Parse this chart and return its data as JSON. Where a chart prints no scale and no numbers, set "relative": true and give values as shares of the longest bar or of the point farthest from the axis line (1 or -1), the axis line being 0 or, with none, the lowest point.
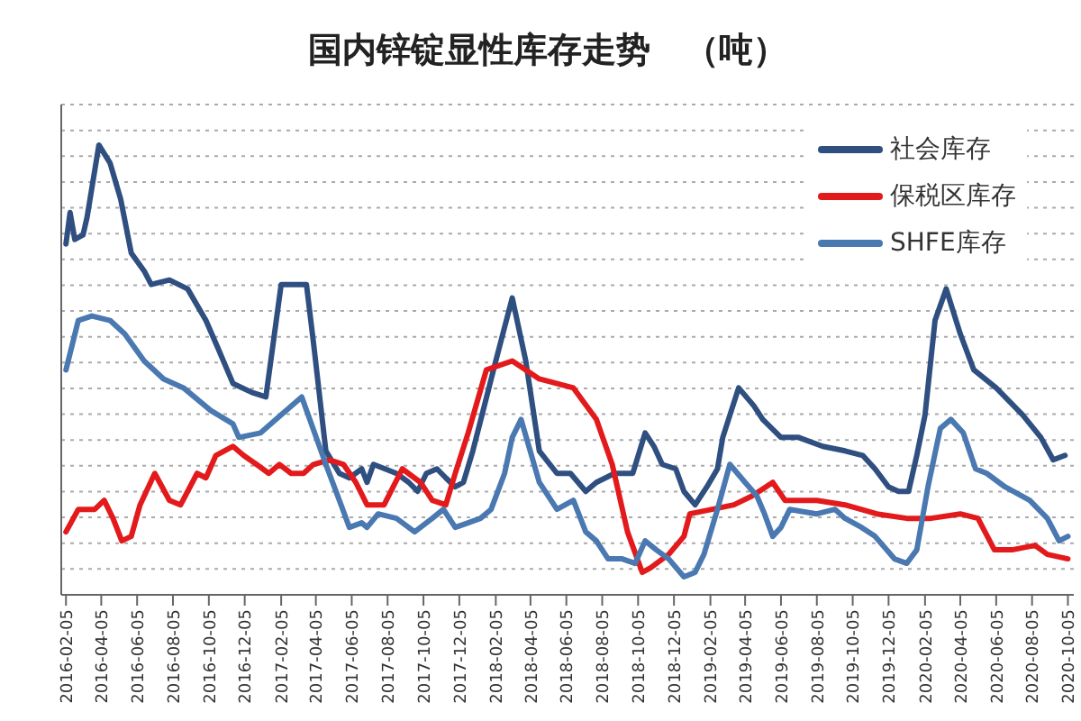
{
  "chart_data": {
    "type": "line",
    "title": "国内锌锭显性库存走势　（吨）",
    "relative": true,
    "grid": "y",
    "legend": "top right",
    "marker": "none",
    "line_style": "solid",
    "xlim": [
      "2016-01-28",
      "2020-10-15"
    ],
    "xticks": [
      "2016-02-05",
      "2016-04-05",
      "2016-06-05",
      "2016-08-05",
      "2016-10-05",
      "2016-12-05",
      "2017-02-05",
      "2017-04-05",
      "2017-06-05",
      "2017-08-05",
      "2017-10-05",
      "2017-12-05",
      "2018-02-05",
      "2018-04-05",
      "2018-06-05",
      "2018-08-05",
      "2018-10-05",
      "2018-12-05",
      "2019-02-05",
      "2019-04-05",
      "2019-06-05",
      "2019-08-05",
      "2019-10-05",
      "2019-12-05",
      "2020-02-05",
      "2020-04-05",
      "2020-06-05",
      "2020-08-05",
      "2020-10-05"
    ],
    "series": [
      {
        "name": "社会库存",
        "color": "#2f4f80",
        "x": [
          "2016-02-05",
          "2016-02-12",
          "2016-02-20",
          "2016-03-05",
          "2016-03-12",
          "2016-04-01",
          "2016-04-20",
          "2016-05-08",
          "2016-05-26",
          "2016-06-17",
          "2016-06-29",
          "2016-07-30",
          "2016-08-30",
          "2016-09-30",
          "2016-10-20",
          "2016-11-15",
          "2016-12-17",
          "2017-01-10",
          "2017-02-05",
          "2017-03-20",
          "2017-04-01",
          "2017-04-22",
          "2017-05-15",
          "2017-06-01",
          "2017-06-22",
          "2017-07-01",
          "2017-07-12",
          "2017-08-20",
          "2017-09-10",
          "2017-09-25",
          "2017-10-10",
          "2017-10-28",
          "2017-11-12",
          "2017-11-28",
          "2017-12-12",
          "2017-12-28",
          "2018-02-05",
          "2018-03-05",
          "2018-03-28",
          "2018-04-20",
          "2018-05-20",
          "2018-06-12",
          "2018-07-08",
          "2018-07-26",
          "2018-08-26",
          "2018-09-26",
          "2018-10-17",
          "2018-11-01",
          "2018-11-15",
          "2018-12-08",
          "2018-12-22",
          "2019-01-10",
          "2019-01-30",
          "2019-02-17",
          "2019-02-26",
          "2019-03-25",
          "2019-04-20",
          "2019-05-05",
          "2019-06-05",
          "2019-07-05",
          "2019-08-15",
          "2019-09-22",
          "2019-10-22",
          "2019-11-12",
          "2019-12-05",
          "2019-12-22",
          "2020-01-08",
          "2020-01-22",
          "2020-02-05",
          "2020-02-22",
          "2020-03-12",
          "2020-04-05",
          "2020-04-28",
          "2020-06-05",
          "2020-07-20",
          "2020-08-20",
          "2020-09-10",
          "2020-09-30"
        ],
        "values": [
          0.78,
          0.85,
          0.79,
          0.8,
          0.84,
          1,
          0.96,
          0.88,
          0.76,
          0.72,
          0.69,
          0.7,
          0.68,
          0.61,
          0.55,
          0.47,
          0.45,
          0.44,
          0.69,
          0.69,
          0.56,
          0.32,
          0.27,
          0.26,
          0.28,
          0.25,
          0.29,
          0.27,
          0.25,
          0.23,
          0.27,
          0.28,
          0.26,
          0.24,
          0.25,
          0.32,
          0.52,
          0.66,
          0.52,
          0.32,
          0.27,
          0.27,
          0.23,
          0.25,
          0.27,
          0.27,
          0.36,
          0.33,
          0.29,
          0.28,
          0.23,
          0.2,
          0.24,
          0.28,
          0.35,
          0.46,
          0.42,
          0.39,
          0.35,
          0.35,
          0.33,
          0.32,
          0.31,
          0.28,
          0.24,
          0.23,
          0.23,
          0.31,
          0.4,
          0.61,
          0.68,
          0.58,
          0.5,
          0.46,
          0.4,
          0.35,
          0.3,
          0.31
        ]
      },
      {
        "name": "保税区库存",
        "color": "#e31a1c",
        "x": [
          "2016-02-05",
          "2016-02-26",
          "2016-03-15",
          "2016-03-25",
          "2016-04-10",
          "2016-04-25",
          "2016-05-10",
          "2016-05-26",
          "2016-06-10",
          "2016-07-05",
          "2016-07-30",
          "2016-08-18",
          "2016-09-15",
          "2016-09-30",
          "2016-10-17",
          "2016-11-15",
          "2016-12-03",
          "2016-12-25",
          "2017-01-15",
          "2017-02-02",
          "2017-02-22",
          "2017-03-15",
          "2017-04-01",
          "2017-04-28",
          "2017-05-22",
          "2017-06-12",
          "2017-07-01",
          "2017-07-30",
          "2017-08-30",
          "2017-09-30",
          "2017-10-20",
          "2017-11-12",
          "2017-11-28",
          "2017-12-20",
          "2018-01-20",
          "2018-03-05",
          "2018-04-20",
          "2018-06-17",
          "2018-07-26",
          "2018-08-22",
          "2018-09-17",
          "2018-10-12",
          "2018-10-26",
          "2018-11-26",
          "2018-12-22",
          "2019-01-01",
          "2019-02-08",
          "2019-03-17",
          "2019-04-17",
          "2019-05-22",
          "2019-06-12",
          "2019-08-05",
          "2019-09-22",
          "2019-11-15",
          "2020-01-05",
          "2020-02-15",
          "2020-04-05",
          "2020-05-05",
          "2020-06-02",
          "2020-07-02",
          "2020-08-10",
          "2020-08-31",
          "2020-10-05"
        ],
        "values": [
          0.14,
          0.19,
          0.19,
          0.19,
          0.21,
          0.17,
          0.12,
          0.13,
          0.2,
          0.27,
          0.21,
          0.2,
          0.27,
          0.26,
          0.31,
          0.33,
          0.31,
          0.29,
          0.27,
          0.29,
          0.27,
          0.27,
          0.29,
          0.3,
          0.29,
          0.25,
          0.2,
          0.2,
          0.28,
          0.25,
          0.21,
          0.2,
          0.27,
          0.36,
          0.5,
          0.52,
          0.48,
          0.46,
          0.39,
          0.29,
          0.14,
          0.05,
          0.06,
          0.09,
          0.13,
          0.18,
          0.19,
          0.2,
          0.22,
          0.25,
          0.21,
          0.21,
          0.2,
          0.18,
          0.17,
          0.17,
          0.18,
          0.17,
          0.1,
          0.1,
          0.11,
          0.09,
          0.08
        ]
      },
      {
        "name": "SHFE库存",
        "color": "#4a78b0",
        "x": [
          "2016-02-05",
          "2016-02-26",
          "2016-03-20",
          "2016-04-20",
          "2016-05-15",
          "2016-06-17",
          "2016-07-20",
          "2016-08-23",
          "2016-10-08",
          "2016-11-15",
          "2016-11-25",
          "2017-01-01",
          "2017-02-05",
          "2017-03-12",
          "2017-04-22",
          "2017-05-15",
          "2017-06-01",
          "2017-06-22",
          "2017-07-01",
          "2017-07-20",
          "2017-08-20",
          "2017-09-20",
          "2017-10-20",
          "2017-11-08",
          "2017-11-28",
          "2017-12-20",
          "2018-01-10",
          "2018-01-28",
          "2018-02-20",
          "2018-03-05",
          "2018-03-20",
          "2018-04-20",
          "2018-05-20",
          "2018-06-17",
          "2018-07-08",
          "2018-07-26",
          "2018-08-15",
          "2018-09-08",
          "2018-09-30",
          "2018-10-17",
          "2018-11-05",
          "2018-11-26",
          "2018-12-22",
          "2019-01-10",
          "2019-01-25",
          "2019-02-17",
          "2019-03-10",
          "2019-04-05",
          "2019-04-25",
          "2019-05-08",
          "2019-05-22",
          "2019-06-05",
          "2019-06-20",
          "2019-08-05",
          "2019-09-05",
          "2019-09-22",
          "2019-10-20",
          "2019-11-12",
          "2019-12-15",
          "2020-01-05",
          "2020-01-22",
          "2020-02-10",
          "2020-03-02",
          "2020-03-20",
          "2020-04-10",
          "2020-05-01",
          "2020-05-20",
          "2020-06-20",
          "2020-08-01",
          "2020-08-31",
          "2020-09-20",
          "2020-10-05"
        ],
        "values": [
          0.5,
          0.61,
          0.62,
          0.61,
          0.58,
          0.52,
          0.48,
          0.46,
          0.41,
          0.38,
          0.35,
          0.36,
          0.4,
          0.44,
          0.29,
          0.21,
          0.15,
          0.16,
          0.15,
          0.18,
          0.17,
          0.14,
          0.17,
          0.19,
          0.15,
          0.16,
          0.17,
          0.19,
          0.27,
          0.35,
          0.39,
          0.25,
          0.19,
          0.21,
          0.14,
          0.12,
          0.08,
          0.08,
          0.07,
          0.12,
          0.1,
          0.08,
          0.04,
          0.05,
          0.09,
          0.19,
          0.29,
          0.25,
          0.22,
          0.18,
          0.13,
          0.15,
          0.19,
          0.18,
          0.19,
          0.17,
          0.15,
          0.13,
          0.08,
          0.07,
          0.1,
          0.24,
          0.37,
          0.39,
          0.36,
          0.28,
          0.27,
          0.24,
          0.21,
          0.17,
          0.12,
          0.13
        ]
      }
    ]
  }
}
